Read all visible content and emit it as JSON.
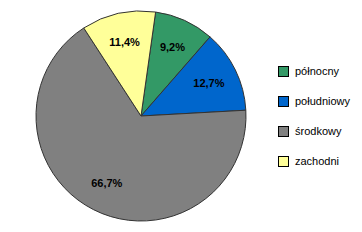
{
  "chart_data": {
    "type": "pie",
    "categories": [
      "północny",
      "południowy",
      "środkowy",
      "zachodni"
    ],
    "values": [
      9.2,
      12.7,
      66.7,
      11.4
    ],
    "value_labels": [
      "9,2%",
      "12,7%",
      "66,7%",
      "11,4%"
    ],
    "colors": [
      "#339966",
      "#0066cc",
      "#808080",
      "#ffff99"
    ],
    "data_labels": true,
    "legend": "right"
  }
}
